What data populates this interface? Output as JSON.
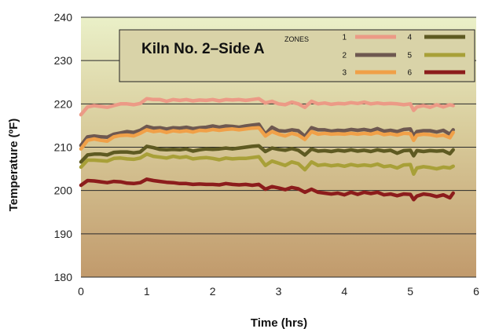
{
  "chart_data": {
    "type": "line",
    "title": "Kiln No. 2–Side A",
    "xlabel": "Time (hrs)",
    "ylabel": "Temperature (ºF)",
    "xlim": [
      0,
      6
    ],
    "ylim": [
      180,
      240
    ],
    "x_ticks": [
      "0",
      "1",
      "2",
      "3",
      "4",
      "5",
      "6"
    ],
    "y_ticks": [
      "180",
      "190",
      "200",
      "210",
      "220",
      "230",
      "240"
    ],
    "grid": "horizontal",
    "legend_heading": "ZONES",
    "legend_position": "top",
    "x": [
      0,
      0.1,
      0.2,
      0.3,
      0.4,
      0.5,
      0.6,
      0.7,
      0.8,
      0.9,
      1.0,
      1.1,
      1.2,
      1.3,
      1.4,
      1.5,
      1.6,
      1.7,
      1.8,
      1.9,
      2.0,
      2.1,
      2.2,
      2.3,
      2.4,
      2.5,
      2.6,
      2.7,
      2.8,
      2.9,
      3.0,
      3.1,
      3.2,
      3.3,
      3.4,
      3.5,
      3.6,
      3.7,
      3.8,
      3.9,
      4.0,
      4.1,
      4.2,
      4.3,
      4.4,
      4.5,
      4.6,
      4.7,
      4.8,
      4.9,
      5.0,
      5.05,
      5.1,
      5.2,
      5.3,
      5.4,
      5.5,
      5.6,
      5.65
    ],
    "series": [
      {
        "name": "1",
        "color": "#ec9a86",
        "values": [
          217.5,
          219.3,
          219.6,
          219.4,
          219.2,
          219.6,
          220.0,
          220.0,
          219.8,
          220.1,
          221.2,
          221.0,
          221.0,
          220.6,
          221.0,
          220.8,
          221.0,
          220.7,
          220.9,
          220.8,
          221.0,
          220.7,
          221.0,
          220.9,
          221.0,
          220.8,
          221.0,
          221.2,
          220.2,
          220.6,
          220.0,
          219.8,
          220.4,
          220.0,
          219.2,
          220.6,
          220.0,
          220.2,
          219.9,
          220.1,
          220.0,
          220.3,
          220.1,
          220.4,
          220.0,
          220.2,
          220.0,
          220.1,
          220.0,
          219.8,
          220.0,
          218.5,
          219.3,
          219.6,
          219.2,
          219.8,
          219.3,
          219.8,
          219.6
        ]
      },
      {
        "name": "2",
        "color": "#6e5850",
        "values": [
          210.4,
          212.4,
          212.6,
          212.4,
          212.3,
          213.0,
          213.3,
          213.6,
          213.4,
          213.9,
          214.8,
          214.4,
          214.5,
          214.2,
          214.5,
          214.4,
          214.6,
          214.3,
          214.5,
          214.6,
          214.9,
          214.6,
          214.9,
          214.8,
          214.6,
          214.9,
          215.1,
          215.3,
          213.0,
          214.6,
          213.8,
          213.7,
          214.0,
          213.8,
          212.5,
          214.5,
          214.0,
          214.0,
          213.7,
          213.9,
          213.8,
          214.1,
          213.9,
          214.1,
          213.8,
          214.3,
          213.7,
          213.9,
          213.6,
          214.1,
          214.2,
          212.6,
          213.6,
          213.8,
          213.8,
          213.5,
          213.9,
          213.0,
          214.0
        ]
      },
      {
        "name": "3",
        "color": "#f0a048",
        "values": [
          209.6,
          211.6,
          211.9,
          211.6,
          211.4,
          212.4,
          212.7,
          212.8,
          212.6,
          213.2,
          214.0,
          213.6,
          213.8,
          213.4,
          213.8,
          213.6,
          213.8,
          213.5,
          213.9,
          213.8,
          214.1,
          213.9,
          214.1,
          214.2,
          214.0,
          214.2,
          214.4,
          214.5,
          212.6,
          213.6,
          213.0,
          212.6,
          213.2,
          212.8,
          211.8,
          213.6,
          213.0,
          213.2,
          213.0,
          213.1,
          213.0,
          213.2,
          213.0,
          213.2,
          213.0,
          213.4,
          212.9,
          213.1,
          212.8,
          213.2,
          213.1,
          211.6,
          212.8,
          213.0,
          212.9,
          212.6,
          212.8,
          212.2,
          213.4
        ]
      },
      {
        "name": "4",
        "color": "#5e5a22",
        "values": [
          206.6,
          208.2,
          208.4,
          208.4,
          208.2,
          208.8,
          208.9,
          208.9,
          208.7,
          208.9,
          210.2,
          209.9,
          209.5,
          209.4,
          209.5,
          209.4,
          209.6,
          209.1,
          209.4,
          209.6,
          209.5,
          209.6,
          209.8,
          209.6,
          209.8,
          210.0,
          210.2,
          210.3,
          209.0,
          209.8,
          209.5,
          209.3,
          209.7,
          209.3,
          208.2,
          209.6,
          209.1,
          209.2,
          209.0,
          209.3,
          209.1,
          209.4,
          209.1,
          209.3,
          209.0,
          209.4,
          209.1,
          209.3,
          208.6,
          209.2,
          209.3,
          208.0,
          209.2,
          209.0,
          209.2,
          209.1,
          209.2,
          208.5,
          209.4
        ]
      },
      {
        "name": "5",
        "color": "#a8a038",
        "values": [
          205.4,
          207.0,
          207.0,
          206.9,
          206.8,
          207.4,
          207.5,
          207.3,
          207.2,
          207.5,
          208.4,
          207.9,
          207.7,
          207.5,
          207.9,
          207.6,
          207.8,
          207.3,
          207.5,
          207.6,
          207.4,
          207.1,
          207.5,
          207.3,
          207.4,
          207.4,
          207.6,
          207.8,
          205.8,
          206.8,
          206.3,
          205.8,
          206.6,
          206.2,
          204.8,
          206.6,
          205.8,
          206.0,
          205.7,
          205.9,
          205.6,
          206.0,
          205.7,
          205.9,
          205.7,
          206.1,
          205.5,
          205.7,
          205.2,
          205.9,
          206.0,
          203.8,
          205.2,
          205.5,
          205.3,
          205.0,
          205.4,
          205.2,
          205.6
        ]
      },
      {
        "name": "6",
        "color": "#8c1c1c",
        "values": [
          201.2,
          202.3,
          202.2,
          202.0,
          201.8,
          202.1,
          202.0,
          201.7,
          201.6,
          201.8,
          202.6,
          202.3,
          202.1,
          201.9,
          201.8,
          201.6,
          201.6,
          201.4,
          201.5,
          201.4,
          201.4,
          201.3,
          201.6,
          201.4,
          201.3,
          201.4,
          201.2,
          201.4,
          200.3,
          200.9,
          200.6,
          200.2,
          200.7,
          200.4,
          199.6,
          200.3,
          199.6,
          199.4,
          199.2,
          199.4,
          199.0,
          199.6,
          199.1,
          199.6,
          199.3,
          199.6,
          199.0,
          199.2,
          198.8,
          199.2,
          199.1,
          197.9,
          198.7,
          199.2,
          199.0,
          198.6,
          199.0,
          198.3,
          199.4
        ]
      }
    ]
  }
}
